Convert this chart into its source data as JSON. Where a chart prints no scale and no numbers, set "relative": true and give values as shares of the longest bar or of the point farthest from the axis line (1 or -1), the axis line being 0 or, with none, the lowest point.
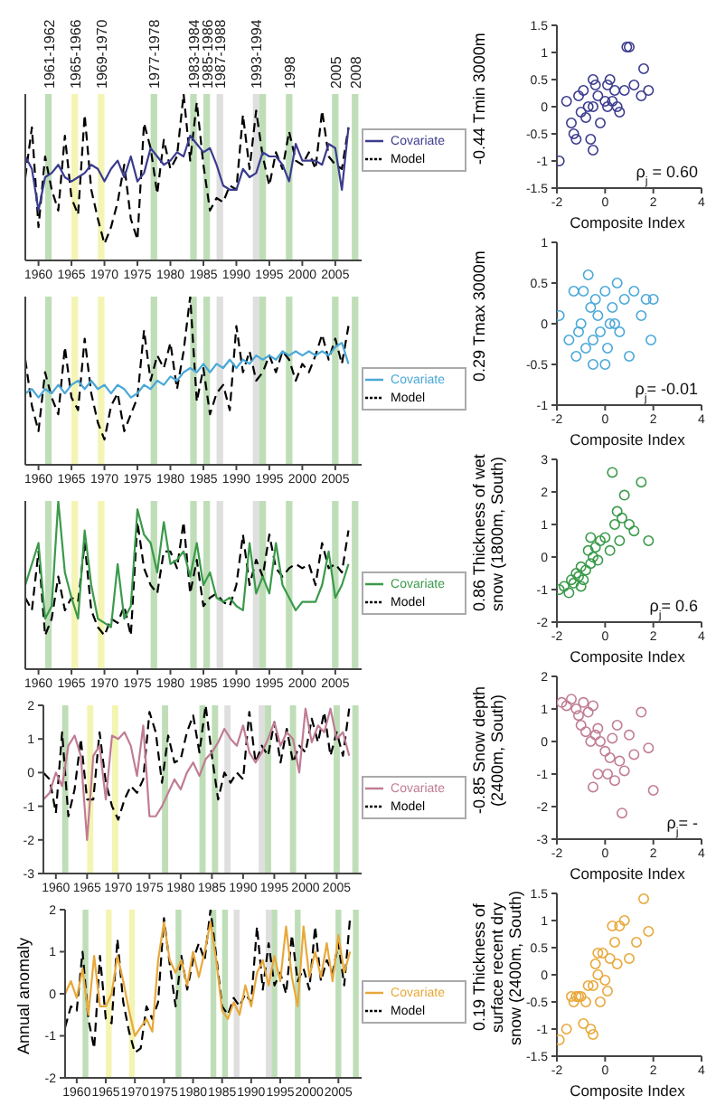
{
  "chart_data": [
    {
      "type": "line",
      "x": [
        1958,
        1959,
        1960,
        1961,
        1962,
        1963,
        1964,
        1965,
        1966,
        1967,
        1968,
        1969,
        1970,
        1971,
        1972,
        1973,
        1974,
        1975,
        1976,
        1977,
        1978,
        1979,
        1980,
        1981,
        1982,
        1983,
        1984,
        1985,
        1986,
        1987,
        1988,
        1989,
        1990,
        1991,
        1992,
        1993,
        1994,
        1995,
        1996,
        1997,
        1998,
        1999,
        2000,
        2001,
        2002,
        2003,
        2004,
        2005,
        2006,
        2007
      ],
      "xlim": [
        1958,
        2009
      ],
      "xticks": [
        1960,
        1965,
        1970,
        1975,
        1980,
        1985,
        1990,
        1995,
        2000,
        2005
      ],
      "relative": true,
      "legend": "right",
      "series": [
        {
          "name": "Model",
          "color": "#000000",
          "line_style": "dashed",
          "values": [
            0.5,
            0.8,
            0.2,
            0.625,
            0.425,
            0.3,
            0.75,
            0.375,
            0.275,
            0.875,
            0.425,
            0.25,
            0.1,
            0.2,
            0.35,
            0.575,
            0.25,
            0.125,
            0.825,
            0.675,
            0.4,
            0.725,
            0.55,
            0.625,
            1,
            0.6,
            0.95,
            0.575,
            0.3,
            0.375,
            0.35,
            0.45,
            0.425,
            0.875,
            0.55,
            0.9,
            0.625,
            0.45,
            0.65,
            0.55,
            0.775,
            0.6,
            0.575,
            0.65,
            0.55,
            0.9,
            0.625,
            0.575,
            0.55,
            0.8
          ]
        },
        {
          "name": "Covariate",
          "color": "#3b3b8f",
          "values": [
            0.625,
            0.55,
            0.3,
            0.5,
            0.525,
            0.575,
            0.5,
            0.475,
            0.5,
            0.525,
            0.575,
            0.55,
            0.475,
            0.55,
            0.6,
            0.5,
            0.625,
            0.475,
            0.525,
            0.675,
            0.625,
            0.575,
            0.6,
            0.65,
            0.625,
            0.75,
            0.7,
            0.65,
            0.675,
            0.575,
            0.45,
            0.425,
            0.425,
            0.55,
            0.5,
            0.525,
            0.65,
            0.625,
            0.625,
            0.575,
            0.475,
            0.7,
            0.6,
            0.6,
            0.6,
            0.575,
            0.7,
            0.675,
            0.425,
            0.8
          ]
        }
      ],
      "bands": [
        {
          "axis": "x",
          "from": 1961,
          "to": 1962,
          "label": "1961-1962",
          "color": "#a9d3a0"
        },
        {
          "axis": "x",
          "from": 1965,
          "to": 1966,
          "label": "1965-1966",
          "color": "#f0f09a"
        },
        {
          "axis": "x",
          "from": 1969,
          "to": 1970,
          "label": "1969-1970",
          "color": "#f0f09a"
        },
        {
          "axis": "x",
          "from": 1977,
          "to": 1978,
          "label": "1977-1978",
          "color": "#a9d3a0"
        },
        {
          "axis": "x",
          "from": 1983,
          "to": 1984,
          "label": "1983-1984",
          "color": "#a9d3a0"
        },
        {
          "axis": "x",
          "from": 1985,
          "to": 1986,
          "label": "1985-1986",
          "color": "#a9d3a0"
        },
        {
          "axis": "x",
          "from": 1987,
          "to": 1988,
          "label": "1987-1988",
          "color": "#d4d4d4"
        },
        {
          "axis": "x",
          "from": 1992.5,
          "to": 1993.5,
          "label": "1993-1994",
          "color": "#d4d4d4"
        },
        {
          "axis": "x",
          "from": 1993.5,
          "to": 1994.5,
          "label": null,
          "color": "#a9d3a0"
        },
        {
          "axis": "x",
          "from": 1997.5,
          "to": 1998.5,
          "label": "1998",
          "color": "#a9d3a0"
        },
        {
          "axis": "x",
          "from": 2004.5,
          "to": 2005.5,
          "label": "2005",
          "color": "#a9d3a0"
        },
        {
          "axis": "x",
          "from": 2007.5,
          "to": 2008.5,
          "label": "2008",
          "color": "#a9d3a0"
        }
      ]
    },
    {
      "type": "scatter",
      "xlabel": "Composite Index",
      "ylabel": "-0.44 Tmin 3000m",
      "marker": "circle",
      "color": "#3b3b8f",
      "xlim": [
        -2,
        4
      ],
      "xticks": [
        -2,
        0,
        2,
        4
      ],
      "ylim": [
        -1.5,
        1.5
      ],
      "yticks": [
        -1.5,
        -1,
        -0.5,
        0,
        0.5,
        1,
        1.5
      ],
      "annotations": [
        "ρ$_{j}$ = 0.60"
      ],
      "x": [
        -1.9,
        -1.6,
        -1.4,
        -1.2,
        -1.1,
        -1.0,
        -0.9,
        -0.8,
        -0.7,
        -0.6,
        -0.5,
        -0.5,
        -0.4,
        -0.3,
        -0.2,
        0.0,
        0.1,
        0.2,
        0.3,
        0.4,
        0.5,
        0.6,
        0.8,
        1.0,
        1.2,
        1.5,
        1.6,
        1.8,
        -1.3,
        -0.5,
        0.1,
        0.9
      ],
      "values": [
        -1.0,
        0.1,
        -0.3,
        -0.6,
        0.2,
        -0.1,
        0.3,
        -0.2,
        0.0,
        -0.6,
        0.5,
        0.0,
        0.4,
        0.2,
        -0.3,
        0.1,
        0.0,
        0.5,
        0.1,
        0.3,
        0.0,
        -0.1,
        0.3,
        1.1,
        0.4,
        0.2,
        0.7,
        0.3,
        -0.5,
        -0.8,
        0.4,
        1.1
      ]
    },
    {
      "type": "line",
      "x": [
        1958,
        1959,
        1960,
        1961,
        1962,
        1963,
        1964,
        1965,
        1966,
        1967,
        1968,
        1969,
        1970,
        1971,
        1972,
        1973,
        1974,
        1975,
        1976,
        1977,
        1978,
        1979,
        1980,
        1981,
        1982,
        1983,
        1984,
        1985,
        1986,
        1987,
        1988,
        1989,
        1990,
        1991,
        1992,
        1993,
        1994,
        1995,
        1996,
        1997,
        1998,
        1999,
        2000,
        2001,
        2002,
        2003,
        2004,
        2005,
        2006,
        2007
      ],
      "xlim": [
        1958,
        2009
      ],
      "xticks": [
        1960,
        1965,
        1970,
        1975,
        1980,
        1985,
        1990,
        1995,
        2000,
        2005
      ],
      "relative": true,
      "legend": "right",
      "series": [
        {
          "name": "Model",
          "color": "#000000",
          "line_style": "dashed",
          "values": [
            0.625,
            0.35,
            0.2,
            0.55,
            0.4,
            0.3,
            0.7,
            0.4,
            0.325,
            0.75,
            0.425,
            0.25,
            0.15,
            0.35,
            0.425,
            0.2,
            0.3,
            0.4,
            0.8,
            0.5,
            0.65,
            0.575,
            0.725,
            0.45,
            0.675,
            1,
            0.375,
            0.575,
            0.3,
            0.425,
            0.475,
            0.325,
            0.825,
            0.55,
            0.675,
            0.5,
            0.55,
            0.65,
            0.55,
            0.675,
            0.625,
            0.5,
            0.6,
            0.55,
            0.65,
            0.775,
            0.625,
            0.75,
            0.6,
            0.825
          ]
        },
        {
          "name": "Covariate",
          "color": "#4aa8d8",
          "values": [
            0.425,
            0.45,
            0.4,
            0.45,
            0.425,
            0.475,
            0.425,
            0.475,
            0.5,
            0.45,
            0.5,
            0.45,
            0.475,
            0.425,
            0.475,
            0.45,
            0.4,
            0.425,
            0.475,
            0.45,
            0.5,
            0.475,
            0.525,
            0.5,
            0.55,
            0.575,
            0.55,
            0.6,
            0.55,
            0.6,
            0.575,
            0.625,
            0.575,
            0.625,
            0.6,
            0.65,
            0.625,
            0.65,
            0.625,
            0.675,
            0.65,
            0.675,
            0.65,
            0.675,
            0.65,
            0.675,
            0.65,
            0.7,
            0.725,
            0.6
          ]
        }
      ],
      "bands": [
        {
          "axis": "x",
          "from": 1961,
          "to": 1962,
          "label": null,
          "color": "#a9d3a0"
        },
        {
          "axis": "x",
          "from": 1965,
          "to": 1966,
          "label": null,
          "color": "#f0f09a"
        },
        {
          "axis": "x",
          "from": 1969,
          "to": 1970,
          "label": null,
          "color": "#f0f09a"
        },
        {
          "axis": "x",
          "from": 1977,
          "to": 1978,
          "label": null,
          "color": "#a9d3a0"
        },
        {
          "axis": "x",
          "from": 1983,
          "to": 1984,
          "label": null,
          "color": "#a9d3a0"
        },
        {
          "axis": "x",
          "from": 1985,
          "to": 1986,
          "label": null,
          "color": "#a9d3a0"
        },
        {
          "axis": "x",
          "from": 1987,
          "to": 1988,
          "label": null,
          "color": "#d4d4d4"
        },
        {
          "axis": "x",
          "from": 1992.5,
          "to": 1993.5,
          "label": null,
          "color": "#d4d4d4"
        },
        {
          "axis": "x",
          "from": 1993.5,
          "to": 1994.5,
          "label": null,
          "color": "#a9d3a0"
        },
        {
          "axis": "x",
          "from": 1997.5,
          "to": 1998.5,
          "label": null,
          "color": "#a9d3a0"
        },
        {
          "axis": "x",
          "from": 2004.5,
          "to": 2005.5,
          "label": null,
          "color": "#a9d3a0"
        },
        {
          "axis": "x",
          "from": 2007.5,
          "to": 2008.5,
          "label": null,
          "color": "#a9d3a0"
        }
      ]
    },
    {
      "type": "scatter",
      "xlabel": "Composite Index",
      "ylabel": "0.29 Tmax 3000m",
      "marker": "circle",
      "color": "#4aa8d8",
      "xlim": [
        -2,
        4
      ],
      "xticks": [
        -2,
        0,
        2,
        4
      ],
      "ylim": [
        -1,
        1
      ],
      "yticks": [
        -1,
        -0.5,
        0,
        0.5,
        1
      ],
      "annotations": [
        "ρ$_{j}$= -0.01"
      ],
      "x": [
        -1.9,
        -1.5,
        -1.3,
        -1.1,
        -1.0,
        -0.9,
        -0.8,
        -0.7,
        -0.6,
        -0.5,
        -0.4,
        -0.3,
        -0.2,
        0.0,
        0.1,
        0.2,
        0.3,
        0.5,
        0.6,
        0.8,
        1.0,
        1.2,
        1.5,
        1.7,
        1.9,
        -0.5,
        0.0,
        0.4,
        -1.2,
        2.0
      ],
      "values": [
        0.1,
        -0.2,
        0.4,
        -0.1,
        0.0,
        0.4,
        -0.3,
        0.6,
        0.2,
        -0.2,
        0.3,
        0.1,
        -0.1,
        0.4,
        -0.3,
        0.0,
        0.2,
        0.5,
        -0.1,
        0.3,
        -0.4,
        0.4,
        0.1,
        0.3,
        -0.2,
        -0.5,
        -0.5,
        0.0,
        -0.4,
        0.3
      ]
    },
    {
      "type": "line",
      "x": [
        1958,
        1959,
        1960,
        1961,
        1962,
        1963,
        1964,
        1965,
        1966,
        1967,
        1968,
        1969,
        1970,
        1971,
        1972,
        1973,
        1974,
        1975,
        1976,
        1977,
        1978,
        1979,
        1980,
        1981,
        1982,
        1983,
        1984,
        1985,
        1986,
        1987,
        1988,
        1989,
        1990,
        1991,
        1992,
        1993,
        1994,
        1995,
        1996,
        1997,
        1998,
        1999,
        2000,
        2001,
        2002,
        2003,
        2004,
        2005,
        2006,
        2007
      ],
      "xlim": [
        1958,
        2009
      ],
      "xticks": [
        1960,
        1965,
        1970,
        1975,
        1980,
        1985,
        1990,
        1995,
        2000,
        2005
      ],
      "relative": true,
      "legend": "right",
      "series": [
        {
          "name": "Model",
          "color": "#000000",
          "line_style": "dashed",
          "values": [
            0.425,
            0.35,
            0.7,
            0.2,
            0.3,
            0.55,
            0.35,
            0.425,
            0.4,
            0.75,
            0.35,
            0.25,
            0.2,
            0.3,
            0.275,
            0.375,
            0.2,
            0.875,
            0.6,
            0.5,
            0.45,
            0.7,
            0.7,
            0.6,
            0.875,
            0.45,
            0.65,
            0.375,
            0.425,
            0.45,
            0.4,
            0.375,
            0.5,
            0.8,
            0.5,
            0.65,
            0.55,
            0.8,
            0.6,
            0.55,
            0.6,
            0.625,
            0.6,
            0.625,
            0.5,
            0.75,
            0.6,
            0.625,
            0.575,
            0.825
          ]
        },
        {
          "name": "Covariate",
          "color": "#3a9a4a",
          "values": [
            0.5,
            0.625,
            0.75,
            0.3,
            0.375,
            1,
            0.575,
            0.425,
            0.3,
            0.825,
            0.5,
            0.3,
            0.275,
            0.25,
            0.625,
            0.3,
            0.375,
            0.95,
            0.8,
            0.75,
            0.575,
            0.875,
            0.625,
            0.65,
            0.7,
            0.55,
            0.75,
            0.5,
            0.575,
            0.425,
            0.4,
            0.425,
            0.375,
            0.35,
            0.75,
            0.45,
            0.55,
            0.45,
            0.75,
            0.5,
            0.425,
            0.35,
            0.4,
            0.4,
            0.4,
            0.5,
            0.7,
            0.425,
            0.5,
            0.625
          ]
        }
      ],
      "bands": [
        {
          "axis": "x",
          "from": 1961,
          "to": 1962,
          "label": null,
          "color": "#a9d3a0"
        },
        {
          "axis": "x",
          "from": 1965,
          "to": 1966,
          "label": null,
          "color": "#f0f09a"
        },
        {
          "axis": "x",
          "from": 1969,
          "to": 1970,
          "label": null,
          "color": "#f0f09a"
        },
        {
          "axis": "x",
          "from": 1977,
          "to": 1978,
          "label": null,
          "color": "#a9d3a0"
        },
        {
          "axis": "x",
          "from": 1983,
          "to": 1984,
          "label": null,
          "color": "#a9d3a0"
        },
        {
          "axis": "x",
          "from": 1985,
          "to": 1986,
          "label": null,
          "color": "#a9d3a0"
        },
        {
          "axis": "x",
          "from": 1987,
          "to": 1988,
          "label": null,
          "color": "#d4d4d4"
        },
        {
          "axis": "x",
          "from": 1992.5,
          "to": 1993.5,
          "label": null,
          "color": "#d4d4d4"
        },
        {
          "axis": "x",
          "from": 1993.5,
          "to": 1994.5,
          "label": null,
          "color": "#a9d3a0"
        },
        {
          "axis": "x",
          "from": 1997.5,
          "to": 1998.5,
          "label": null,
          "color": "#a9d3a0"
        },
        {
          "axis": "x",
          "from": 2004.5,
          "to": 2005.5,
          "label": null,
          "color": "#a9d3a0"
        },
        {
          "axis": "x",
          "from": 2007.5,
          "to": 2008.5,
          "label": null,
          "color": "#a9d3a0"
        }
      ]
    },
    {
      "type": "scatter",
      "xlabel": "Composite Index",
      "ylabel": "0.86 Thickness of wet snow (1800m, South)",
      "marker": "circle",
      "color": "#3a9a4a",
      "xlim": [
        -2,
        4
      ],
      "xticks": [
        -2,
        0,
        2,
        4
      ],
      "ylim": [
        -2,
        3
      ],
      "yticks": [
        -2,
        -1,
        0,
        1,
        2,
        3
      ],
      "annotations": [
        "ρ$_{j}$= 0.6"
      ],
      "x": [
        -1.9,
        -1.7,
        -1.5,
        -1.4,
        -1.3,
        -1.2,
        -1.1,
        -1.0,
        -0.9,
        -0.8,
        -0.7,
        -0.6,
        -0.5,
        -0.4,
        -0.3,
        -0.2,
        0.0,
        0.2,
        0.4,
        0.5,
        0.6,
        0.8,
        1.0,
        1.2,
        1.5,
        1.8,
        0.3,
        0.7,
        -1.0,
        -0.6
      ],
      "values": [
        -1.0,
        -0.9,
        -1.1,
        -0.7,
        -0.8,
        -0.5,
        -0.6,
        -0.3,
        -0.7,
        -0.4,
        0.2,
        -0.2,
        0.0,
        0.3,
        -0.1,
        0.5,
        0.6,
        0.2,
        1.0,
        1.4,
        0.5,
        1.9,
        1.0,
        0.8,
        2.3,
        0.5,
        2.6,
        1.2,
        -0.9,
        0.6
      ]
    },
    {
      "type": "line",
      "x": [
        1958,
        1959,
        1960,
        1961,
        1962,
        1963,
        1964,
        1965,
        1966,
        1967,
        1968,
        1969,
        1970,
        1971,
        1972,
        1973,
        1974,
        1975,
        1976,
        1977,
        1978,
        1979,
        1980,
        1981,
        1982,
        1983,
        1984,
        1985,
        1986,
        1987,
        1988,
        1989,
        1990,
        1991,
        1992,
        1993,
        1994,
        1995,
        1996,
        1997,
        1998,
        1999,
        2000,
        2001,
        2002,
        2003,
        2004,
        2005,
        2006,
        2007
      ],
      "xlim": [
        1958,
        2009
      ],
      "xticks": [
        1960,
        1965,
        1970,
        1975,
        1980,
        1985,
        1990,
        1995,
        2000,
        2005
      ],
      "ylim": [
        -3,
        2
      ],
      "yticks": [
        -3,
        -2,
        -1,
        0,
        1,
        2
      ],
      "legend": "right",
      "series": [
        {
          "name": "Model",
          "color": "#000000",
          "line_style": "dashed",
          "values": [
            0.0,
            -0.2,
            -1.2,
            1.2,
            -1.3,
            -0.5,
            1.0,
            -0.8,
            -0.8,
            1.2,
            -0.3,
            -1.0,
            -1.4,
            -0.8,
            -0.4,
            -0.6,
            -0.2,
            1.8,
            1.2,
            -0.3,
            1.1,
            0.3,
            0.4,
            1.2,
            1.7,
            0.6,
            2.0,
            0.5,
            -0.8,
            0.0,
            -0.3,
            0.0,
            -0.2,
            1.8,
            0.3,
            0.8,
            0.5,
            1.5,
            0.3,
            1.3,
            0.3,
            0.8,
            0.6,
            1.6,
            0.9,
            1.8,
            0.5,
            1.2,
            0.5,
            1.9
          ]
        },
        {
          "name": "Covariate",
          "color": "#c07c94",
          "values": [
            -0.8,
            -0.6,
            0.0,
            -0.4,
            0.8,
            1.1,
            0.5,
            -2.0,
            0.5,
            0.8,
            -0.8,
            1.1,
            1.0,
            1.2,
            0.8,
            -0.1,
            1.4,
            -1.3,
            -1.3,
            -1.0,
            -0.6,
            -0.2,
            -0.5,
            0.0,
            0.3,
            -0.1,
            0.4,
            0.6,
            0.9,
            1.3,
            1.0,
            0.8,
            1.4,
            0.6,
            0.3,
            0.6,
            1.0,
            1.5,
            0.8,
            1.2,
            1.0,
            0.0,
            1.9,
            0.9,
            1.4,
            1.2,
            1.9,
            1.0,
            1.2,
            0.5
          ]
        }
      ],
      "bands": [
        {
          "axis": "x",
          "from": 1961,
          "to": 1962,
          "label": null,
          "color": "#a9d3a0"
        },
        {
          "axis": "x",
          "from": 1965,
          "to": 1966,
          "label": null,
          "color": "#f0f09a"
        },
        {
          "axis": "x",
          "from": 1969,
          "to": 1970,
          "label": null,
          "color": "#f0f09a"
        },
        {
          "axis": "x",
          "from": 1977,
          "to": 1978,
          "label": null,
          "color": "#a9d3a0"
        },
        {
          "axis": "x",
          "from": 1983,
          "to": 1984,
          "label": null,
          "color": "#a9d3a0"
        },
        {
          "axis": "x",
          "from": 1985,
          "to": 1986,
          "label": null,
          "color": "#a9d3a0"
        },
        {
          "axis": "x",
          "from": 1987,
          "to": 1988,
          "label": null,
          "color": "#d4d4d4"
        },
        {
          "axis": "x",
          "from": 1992.5,
          "to": 1993.5,
          "label": null,
          "color": "#d4d4d4"
        },
        {
          "axis": "x",
          "from": 1993.5,
          "to": 1994.5,
          "label": null,
          "color": "#a9d3a0"
        },
        {
          "axis": "x",
          "from": 1997.5,
          "to": 1998.5,
          "label": null,
          "color": "#a9d3a0"
        },
        {
          "axis": "x",
          "from": 2004.5,
          "to": 2005.5,
          "label": null,
          "color": "#a9d3a0"
        },
        {
          "axis": "x",
          "from": 2007.5,
          "to": 2008.5,
          "label": null,
          "color": "#a9d3a0"
        }
      ]
    },
    {
      "type": "scatter",
      "xlabel": "Composite Index",
      "ylabel": "-0.85 Snow depth (2400m, South)",
      "marker": "circle",
      "color": "#c07c94",
      "xlim": [
        -2,
        4
      ],
      "xticks": [
        -2,
        0,
        2,
        4
      ],
      "ylim": [
        -3,
        2
      ],
      "yticks": [
        -3,
        -2,
        -1,
        0,
        1,
        2
      ],
      "annotations": [
        "ρ$_{j}$= -"
      ],
      "x": [
        -1.8,
        -1.6,
        -1.4,
        -1.2,
        -1.1,
        -1.0,
        -0.9,
        -0.8,
        -0.7,
        -0.6,
        -0.5,
        -0.4,
        -0.3,
        -0.2,
        0.0,
        0.2,
        0.3,
        0.5,
        0.6,
        0.8,
        1.0,
        1.2,
        1.5,
        1.8,
        2.0,
        0.1,
        -0.5,
        0.4,
        -0.3,
        0.7
      ],
      "values": [
        1.2,
        1.1,
        1.3,
        1.0,
        0.8,
        0.5,
        1.2,
        0.3,
        0.9,
        0.0,
        1.1,
        0.2,
        0.4,
        0.0,
        -0.3,
        -0.5,
        0.1,
        0.5,
        -0.6,
        -0.9,
        0.2,
        -0.4,
        0.9,
        -0.2,
        -1.5,
        -1.0,
        -1.4,
        -1.2,
        -1.0,
        -2.2
      ]
    },
    {
      "type": "line",
      "ylabel": "Annual anomaly",
      "x": [
        1958,
        1959,
        1960,
        1961,
        1962,
        1963,
        1964,
        1965,
        1966,
        1967,
        1968,
        1969,
        1970,
        1971,
        1972,
        1973,
        1974,
        1975,
        1976,
        1977,
        1978,
        1979,
        1980,
        1981,
        1982,
        1983,
        1984,
        1985,
        1986,
        1987,
        1988,
        1989,
        1990,
        1991,
        1992,
        1993,
        1994,
        1995,
        1996,
        1997,
        1998,
        1999,
        2000,
        2001,
        2002,
        2003,
        2004,
        2005,
        2006,
        2007
      ],
      "xlim": [
        1958,
        2009
      ],
      "xticks": [
        1960,
        1965,
        1970,
        1975,
        1980,
        1985,
        1990,
        1995,
        2000,
        2005
      ],
      "ylim": [
        -2,
        2
      ],
      "yticks": [
        -2,
        -1,
        0,
        1,
        2
      ],
      "legend": "right",
      "series": [
        {
          "name": "Model",
          "color": "#000000",
          "line_style": "dashed",
          "values": [
            -0.8,
            -0.3,
            -0.4,
            1.0,
            -0.6,
            -1.3,
            0.9,
            -0.6,
            -0.7,
            1.3,
            -0.2,
            -0.9,
            -1.4,
            -1.3,
            -0.3,
            -0.6,
            -0.2,
            1.8,
            0.7,
            -0.3,
            0.9,
            0.1,
            0.8,
            1.2,
            0.8,
            2.0,
            0.9,
            -0.3,
            -0.5,
            -0.1,
            -0.3,
            0.0,
            -0.2,
            1.6,
            0.1,
            1.2,
            0.2,
            0.5,
            0.0,
            1.4,
            0.3,
            0.6,
            0.1,
            1.6,
            0.3,
            0.8,
            0.5,
            1.2,
            0.2,
            1.8
          ]
        },
        {
          "name": "Covariate",
          "color": "#e8a83a",
          "values": [
            0.0,
            0.3,
            -0.1,
            0.6,
            -0.5,
            0.9,
            -0.3,
            -0.3,
            0.0,
            0.9,
            0.3,
            -0.4,
            -1.0,
            -0.8,
            -0.6,
            -0.9,
            0.8,
            1.7,
            0.8,
            0.5,
            0.8,
            0.2,
            1.0,
            0.4,
            1.0,
            1.7,
            0.8,
            -0.4,
            -0.6,
            -0.2,
            -0.5,
            0.2,
            -0.3,
            0.5,
            0.8,
            0.2,
            0.9,
            0.3,
            1.6,
            0.4,
            -0.3,
            1.6,
            0.4,
            1.0,
            0.4,
            1.2,
            0.3,
            1.4,
            0.5,
            1.0
          ]
        }
      ],
      "bands": [
        {
          "axis": "x",
          "from": 1961,
          "to": 1962,
          "label": null,
          "color": "#a9d3a0"
        },
        {
          "axis": "x",
          "from": 1965,
          "to": 1966,
          "label": null,
          "color": "#f0f09a"
        },
        {
          "axis": "x",
          "from": 1969,
          "to": 1970,
          "label": null,
          "color": "#f0f09a"
        },
        {
          "axis": "x",
          "from": 1977,
          "to": 1978,
          "label": null,
          "color": "#a9d3a0"
        },
        {
          "axis": "x",
          "from": 1983,
          "to": 1984,
          "label": null,
          "color": "#a9d3a0"
        },
        {
          "axis": "x",
          "from": 1985,
          "to": 1986,
          "label": null,
          "color": "#a9d3a0"
        },
        {
          "axis": "x",
          "from": 1987,
          "to": 1988,
          "label": null,
          "color": "#d4d4d4"
        },
        {
          "axis": "x",
          "from": 1992.5,
          "to": 1993.5,
          "label": null,
          "color": "#d4d4d4"
        },
        {
          "axis": "x",
          "from": 1993.5,
          "to": 1994.5,
          "label": null,
          "color": "#a9d3a0"
        },
        {
          "axis": "x",
          "from": 1997.5,
          "to": 1998.5,
          "label": null,
          "color": "#a9d3a0"
        },
        {
          "axis": "x",
          "from": 2004.5,
          "to": 2005.5,
          "label": null,
          "color": "#a9d3a0"
        },
        {
          "axis": "x",
          "from": 2007.5,
          "to": 2008.5,
          "label": null,
          "color": "#a9d3a0"
        }
      ]
    },
    {
      "type": "scatter",
      "xlabel": "Composite Index",
      "ylabel": "0.19 Thickness of surface recent dry snow (2400m, South)",
      "marker": "circle",
      "color": "#e8a83a",
      "xlim": [
        -2,
        4
      ],
      "xticks": [
        -2,
        0,
        2,
        4
      ],
      "ylim": [
        -1.5,
        1.5
      ],
      "yticks": [
        -1.5,
        -1,
        -0.5,
        0,
        0.5,
        1,
        1.5
      ],
      "x": [
        -1.9,
        -1.6,
        -1.4,
        -1.3,
        -1.2,
        -1.0,
        -0.9,
        -0.8,
        -0.6,
        -0.5,
        -0.4,
        -0.3,
        -0.2,
        -0.1,
        0.0,
        0.2,
        0.4,
        0.5,
        0.6,
        0.8,
        1.0,
        1.3,
        1.6,
        -1.1,
        -0.7,
        0.3,
        0.1,
        -0.3,
        1.8,
        -0.5
      ],
      "values": [
        -1.2,
        -1.0,
        -0.4,
        -0.5,
        -0.4,
        -0.4,
        -0.9,
        -0.5,
        -1.0,
        -0.2,
        0.2,
        0.0,
        -0.5,
        0.4,
        -0.1,
        0.3,
        0.6,
        0.2,
        0.9,
        1.0,
        0.3,
        0.6,
        1.4,
        -0.4,
        -0.2,
        0.9,
        -0.3,
        0.4,
        0.8,
        -1.1
      ]
    }
  ]
}
